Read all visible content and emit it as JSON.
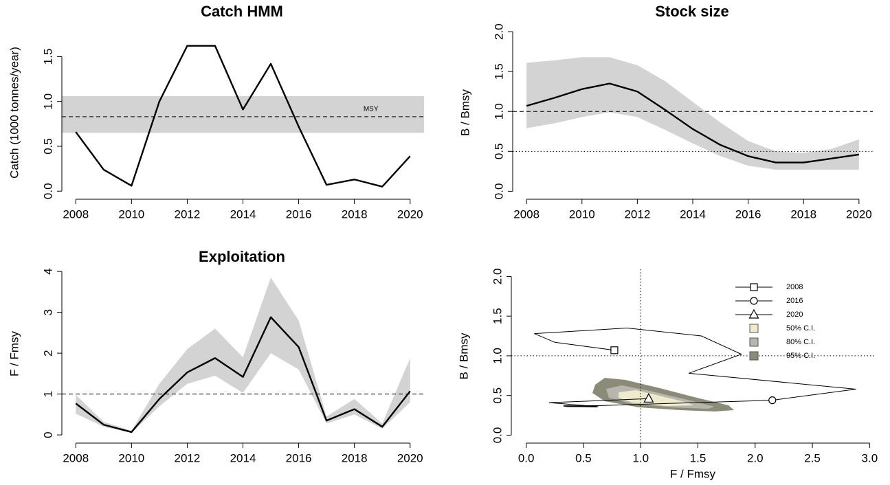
{
  "chart_data": [
    {
      "type": "line",
      "title": "Catch HMM",
      "ylabel": "Catch (1000 tonnes/year)",
      "x": [
        2008,
        2009,
        2010,
        2011,
        2012,
        2013,
        2014,
        2015,
        2016,
        2017,
        2018,
        2019,
        2020
      ],
      "xlim": [
        2007.5,
        2020.5
      ],
      "xticks": [
        2008,
        2010,
        2012,
        2014,
        2016,
        2018,
        2020
      ],
      "ylim": [
        -0.09,
        1.84
      ],
      "yticks": [
        {
          "value": 0,
          "label": "0.0"
        },
        0.5,
        {
          "value": 1,
          "label": "1.0"
        },
        1.5
      ],
      "values": [
        0.66,
        0.24,
        0.06,
        1.0,
        1.62,
        1.62,
        0.91,
        1.42,
        0.72,
        0.07,
        0.13,
        0.05,
        0.39
      ],
      "color": "#000000",
      "band_range": [
        0.65,
        1.06
      ],
      "band_color": "#d3d3d3",
      "ref_lines": [
        {
          "y": 0.83,
          "style": "dashed",
          "label": "MSY"
        }
      ]
    },
    {
      "type": "line",
      "title": "Stock size",
      "ylabel": "B / Bmsy",
      "x": [
        2008,
        2009,
        2010,
        2011,
        2012,
        2013,
        2014,
        2015,
        2016,
        2017,
        2018,
        2019,
        2020
      ],
      "xlim": [
        2007.5,
        2020.5
      ],
      "xticks": [
        2008,
        2010,
        2012,
        2014,
        2016,
        2018,
        2020
      ],
      "ylim": [
        -0.1,
        2.07
      ],
      "yticks": [
        {
          "value": 0,
          "label": "0.0"
        },
        0.5,
        {
          "value": 1,
          "label": "1.0"
        },
        1.5,
        {
          "value": 2,
          "label": "2.0"
        }
      ],
      "values": [
        1.07,
        1.17,
        1.28,
        1.35,
        1.25,
        1.02,
        0.78,
        0.58,
        0.44,
        0.36,
        0.36,
        0.41,
        0.46
      ],
      "color": "#000000",
      "band": {
        "lower": [
          0.79,
          0.85,
          0.93,
          0.99,
          0.93,
          0.77,
          0.6,
          0.44,
          0.32,
          0.27,
          0.27,
          0.27,
          0.27
        ],
        "upper": [
          1.61,
          1.64,
          1.68,
          1.68,
          1.58,
          1.38,
          1.12,
          0.86,
          0.63,
          0.5,
          0.48,
          0.53,
          0.65
        ],
        "color": "#d3d3d3"
      },
      "ref_lines": [
        {
          "y": 1,
          "style": "dashed"
        },
        {
          "y": 0.5,
          "style": "dotted"
        }
      ]
    },
    {
      "type": "line",
      "title": "Exploitation",
      "ylabel": "F / Fmsy",
      "x": [
        2008,
        2009,
        2010,
        2011,
        2012,
        2013,
        2014,
        2015,
        2016,
        2017,
        2018,
        2019,
        2020
      ],
      "xlim": [
        2007.5,
        2020.5
      ],
      "xticks": [
        2008,
        2010,
        2012,
        2014,
        2016,
        2018,
        2020
      ],
      "ylim": [
        -0.2,
        4.17
      ],
      "yticks": [
        0,
        1,
        2,
        3,
        4
      ],
      "values": [
        0.77,
        0.25,
        0.07,
        0.88,
        1.53,
        1.88,
        1.42,
        2.88,
        2.15,
        0.35,
        0.63,
        0.2,
        1.07
      ],
      "color": "#000000",
      "band": {
        "lower": [
          0.52,
          0.2,
          0.05,
          0.7,
          1.25,
          1.45,
          1.03,
          2.0,
          1.6,
          0.28,
          0.5,
          0.15,
          0.8
        ],
        "upper": [
          0.98,
          0.32,
          0.1,
          1.25,
          2.1,
          2.6,
          1.9,
          3.85,
          2.8,
          0.45,
          0.88,
          0.28,
          1.88
        ],
        "color": "#d3d3d3"
      },
      "ref_lines": [
        {
          "y": 1,
          "style": "dashed"
        }
      ]
    },
    {
      "type": "phase",
      "xlabel": "F / Fmsy",
      "ylabel": "B / Bmsy",
      "xlim": [
        -0.13,
        3.04
      ],
      "xticks": [
        {
          "value": 0,
          "label": "0.0"
        },
        0.5,
        {
          "value": 1,
          "label": "1.0"
        },
        1.5,
        {
          "value": 2,
          "label": "2.0"
        },
        2.5,
        {
          "value": 3,
          "label": "3.0"
        }
      ],
      "ylim": [
        -0.1,
        2.09
      ],
      "yticks": [
        {
          "value": 0,
          "label": "0.0"
        },
        0.5,
        {
          "value": 1,
          "label": "1.0"
        },
        1.5,
        {
          "value": 2,
          "label": "2.0"
        }
      ],
      "x": [
        0.77,
        0.25,
        0.07,
        0.88,
        1.53,
        1.88,
        1.42,
        2.88,
        2.15,
        0.35,
        0.63,
        0.2,
        1.07
      ],
      "y": [
        1.07,
        1.17,
        1.28,
        1.35,
        1.25,
        1.02,
        0.78,
        0.58,
        0.44,
        0.36,
        0.36,
        0.41,
        0.46
      ],
      "color": "#000000",
      "ref_lines": [
        {
          "x": 1,
          "style": "dotted"
        },
        {
          "y": 1,
          "style": "dotted"
        }
      ],
      "markers": [
        {
          "name": "2008",
          "symbol": "square",
          "x": 0.77,
          "y": 1.07
        },
        {
          "name": "2016",
          "symbol": "circle",
          "x": 2.15,
          "y": 0.44
        },
        {
          "name": "2020",
          "symbol": "triangle",
          "x": 1.07,
          "y": 0.46
        }
      ],
      "legend": [
        {
          "name": "50% C.I.",
          "color": "#eeeacb"
        },
        {
          "name": "80% C.I.",
          "color": "#b6b6ae"
        },
        {
          "name": "95% C.I.",
          "color": "#8c8b7a"
        }
      ],
      "legend_position": "top-right"
    }
  ]
}
